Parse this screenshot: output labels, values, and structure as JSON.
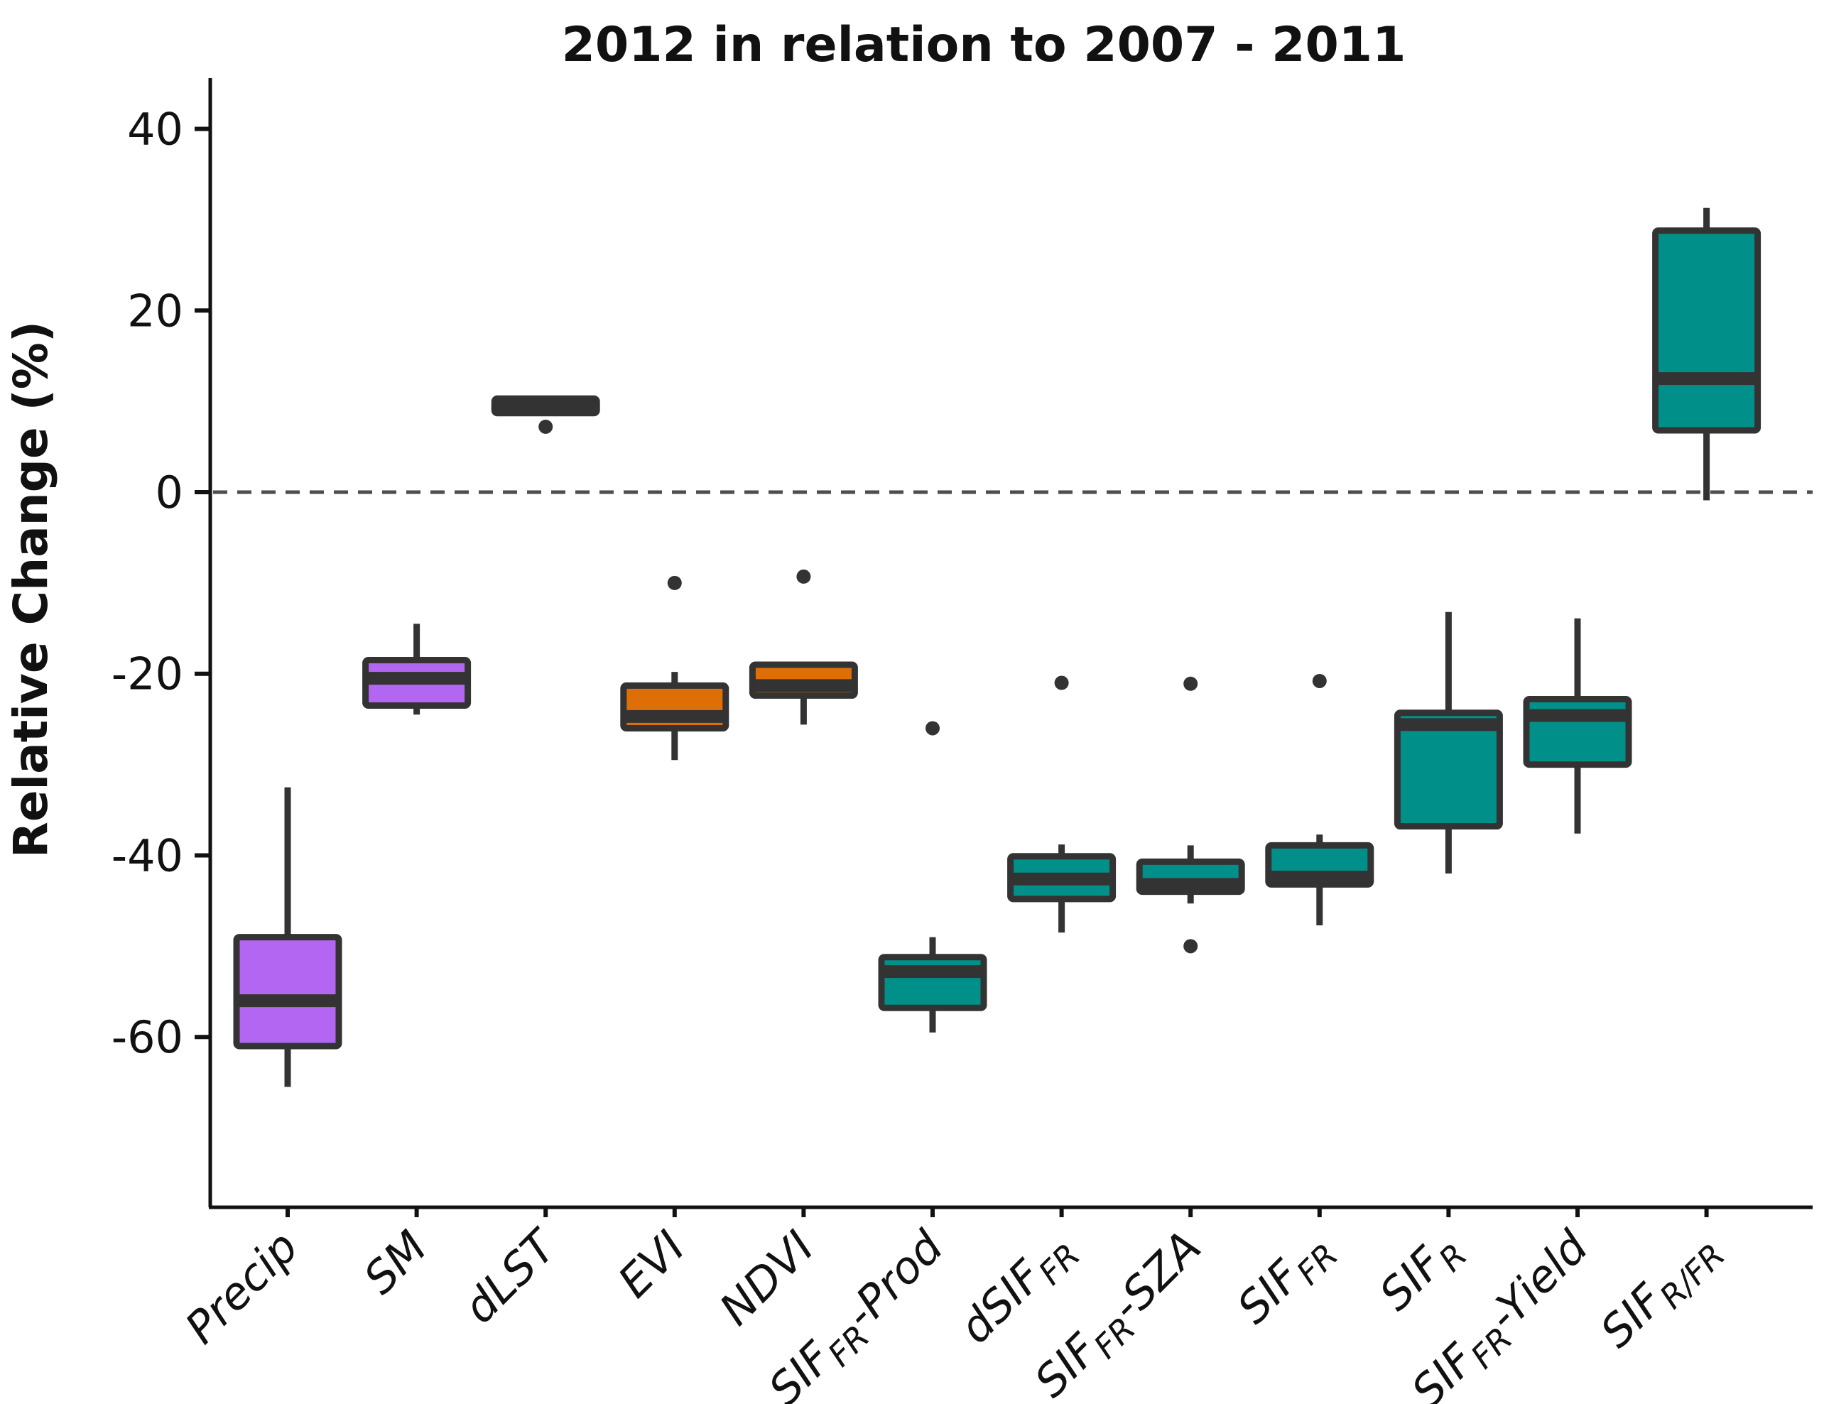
{
  "chart_data": {
    "type": "boxplot",
    "title": "2012 in relation to 2007 - 2011",
    "ylabel": "Relative Change (%)",
    "ylim": [
      -78,
      45
    ],
    "grid": "off",
    "zero_reference_line": {
      "value": 0,
      "style": "dashed"
    },
    "yticks": [
      {
        "label": "40",
        "value": 40
      },
      {
        "label": "20",
        "value": 20
      },
      {
        "label": "0",
        "value": 0
      },
      {
        "label": "-20",
        "value": -20
      },
      {
        "label": "-40",
        "value": -40
      },
      {
        "label": "-60",
        "value": -60
      }
    ],
    "boxes": [
      {
        "name": "Precip",
        "color": "purple",
        "low": -65.5,
        "q1": -61.0,
        "median": -56.0,
        "q3": -49.0,
        "high": -32.5,
        "outliers": []
      },
      {
        "name": "SM",
        "color": "purple",
        "low": -24.5,
        "q1": -23.5,
        "median": -20.5,
        "q3": -18.5,
        "high": -14.5,
        "outliers": []
      },
      {
        "name": "dLST",
        "color": "dark",
        "low": 8.4,
        "q1": 8.7,
        "median": 9.5,
        "q3": 10.3,
        "high": 10.6,
        "outliers": [
          7.2
        ]
      },
      {
        "name": "EVI",
        "color": "orange",
        "low": -29.5,
        "q1": -26.0,
        "median": -24.7,
        "q3": -21.3,
        "high": -19.8,
        "outliers": [
          -10.0
        ]
      },
      {
        "name": "NDVI",
        "color": "orange",
        "low": -25.6,
        "q1": -22.4,
        "median": -21.3,
        "q3": -19.0,
        "high": -18.7,
        "outliers": [
          -9.3
        ]
      },
      {
        "name": "SIF_FR-Prod",
        "color": "teal",
        "low": -59.5,
        "q1": -56.8,
        "median": -52.8,
        "q3": -51.2,
        "high": -49.0,
        "outliers": [
          -26.0
        ]
      },
      {
        "name": "dSIF_FR",
        "color": "teal",
        "low": -48.5,
        "q1": -44.8,
        "median": -42.6,
        "q3": -40.1,
        "high": -38.8,
        "outliers": [
          -21.0
        ]
      },
      {
        "name": "SIF_FR-SZA",
        "color": "teal",
        "low": -45.3,
        "q1": -44.0,
        "median": -43.2,
        "q3": -40.7,
        "high": -38.9,
        "outliers": [
          -21.1,
          -50.0
        ]
      },
      {
        "name": "SIF_FR",
        "color": "teal",
        "low": -47.7,
        "q1": -43.2,
        "median": -42.4,
        "q3": -38.9,
        "high": -37.7,
        "outliers": [
          -20.8
        ]
      },
      {
        "name": "SIF_R",
        "color": "teal",
        "low": -42.0,
        "q1": -36.8,
        "median": -25.6,
        "q3": -24.3,
        "high": -13.2,
        "outliers": []
      },
      {
        "name": "SIF_FR-Yield",
        "color": "teal",
        "low": -37.6,
        "q1": -30.0,
        "median": -24.6,
        "q3": -22.8,
        "high": -13.9,
        "outliers": []
      },
      {
        "name": "SIF_R/FR",
        "color": "teal",
        "low": -0.9,
        "q1": 6.8,
        "median": 12.5,
        "q3": 28.8,
        "high": 31.3,
        "outliers": []
      }
    ],
    "label_parts": [
      [
        {
          "t": "Precip"
        }
      ],
      [
        {
          "t": "SM"
        }
      ],
      [
        {
          "t": "dLST"
        }
      ],
      [
        {
          "t": "EVI"
        }
      ],
      [
        {
          "t": "NDVI"
        }
      ],
      [
        {
          "t": "SIF"
        },
        {
          "t": "FR",
          "sub": true
        },
        {
          "t": "-Prod"
        }
      ],
      [
        {
          "t": "dSIF"
        },
        {
          "t": "FR",
          "sub": true
        }
      ],
      [
        {
          "t": "SIF"
        },
        {
          "t": "FR",
          "sub": true
        },
        {
          "t": "-SZA"
        }
      ],
      [
        {
          "t": "SIF"
        },
        {
          "t": "FR",
          "sub": true
        }
      ],
      [
        {
          "t": "SIF"
        },
        {
          "t": "R",
          "sub": true
        }
      ],
      [
        {
          "t": "SIF"
        },
        {
          "t": "FR",
          "sub": true
        },
        {
          "t": "-Yield"
        }
      ],
      [
        {
          "t": "SIF"
        },
        {
          "t": "R/FR",
          "sub": true
        }
      ]
    ]
  },
  "colors": {
    "purple": "#B266F2",
    "orange": "#DE6F06",
    "teal": "#019089",
    "dark": "#333333",
    "axis": "#111111",
    "zero_line": "#4d4d4d"
  }
}
